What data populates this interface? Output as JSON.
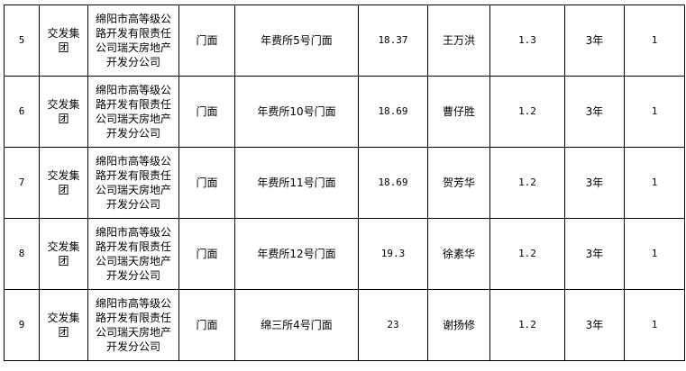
{
  "rows": [
    {
      "no": "5",
      "group": "交发集团",
      "company": "绵阳市高等级公路开发有限责任公司瑞天房地产开发分公司",
      "type": "门面",
      "location": "年费所5号门面",
      "area": "18.37",
      "tenant": "王万洪",
      "price": "1.3",
      "term": "3年",
      "count": "1"
    },
    {
      "no": "6",
      "group": "交发集团",
      "company": "绵阳市高等级公路开发有限责任公司瑞天房地产开发分公司",
      "type": "门面",
      "location": "年费所10号门面",
      "area": "18.69",
      "tenant": "曹仔胜",
      "price": "1.2",
      "term": "3年",
      "count": "1"
    },
    {
      "no": "7",
      "group": "交发集团",
      "company": "绵阳市高等级公路开发有限责任公司瑞天房地产开发分公司",
      "type": "门面",
      "location": "年费所11号门面",
      "area": "18.69",
      "tenant": "贺芳华",
      "price": "1.2",
      "term": "3年",
      "count": "1"
    },
    {
      "no": "8",
      "group": "交发集团",
      "company": "绵阳市高等级公路开发有限责任公司瑞天房地产开发分公司",
      "type": "门面",
      "location": "年费所12号门面",
      "area": "19.3",
      "tenant": "徐素华",
      "price": "1.2",
      "term": "3年",
      "count": "1"
    },
    {
      "no": "9",
      "group": "交发集团",
      "company": "绵阳市高等级公路开发有限责任公司瑞天房地产开发分公司",
      "type": "门面",
      "location": "绵三所4号门面",
      "area": "23",
      "tenant": "谢扬修",
      "price": "1.2",
      "term": "3年",
      "count": "1"
    }
  ]
}
